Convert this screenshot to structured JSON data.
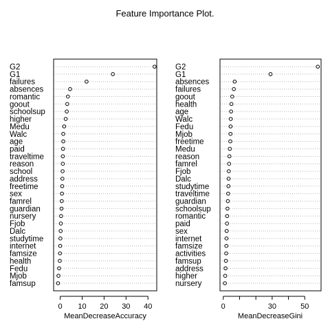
{
  "title": "Feature Importance Plot.",
  "chart_data": [
    {
      "type": "scatter",
      "xlabel": "MeanDecreaseAccuracy",
      "xlim": [
        -3,
        44
      ],
      "xticks": [
        0,
        10,
        20,
        30,
        40
      ],
      "grid": "dotted horizontal",
      "labels": [
        "G2",
        "G1",
        "failures",
        "absences",
        "romantic",
        "goout",
        "schoolsup",
        "higher",
        "Medu",
        "Walc",
        "age",
        "paid",
        "traveltime",
        "reason",
        "school",
        "address",
        "freetime",
        "sex",
        "famrel",
        "guardian",
        "nursery",
        "Fjob",
        "Dalc",
        "studytime",
        "internet",
        "famsize",
        "health",
        "Fedu",
        "Mjob",
        "famsup"
      ],
      "values": [
        43.0,
        24.0,
        12.0,
        4.5,
        3.5,
        3.2,
        3.0,
        2.5,
        1.8,
        1.4,
        1.4,
        1.3,
        1.2,
        1.2,
        1.1,
        1.0,
        0.9,
        0.8,
        0.7,
        0.6,
        0.4,
        0.3,
        0.2,
        0.1,
        0.0,
        -0.1,
        -0.2,
        -0.5,
        -0.8,
        -1.0
      ]
    },
    {
      "type": "scatter",
      "xlabel": "MeanDecreaseGini",
      "xlim": [
        -2,
        60
      ],
      "xticks": [
        0,
        10,
        20,
        30,
        40,
        50
      ],
      "ticklabels": [
        "0",
        "",
        "",
        "30",
        "",
        "50"
      ],
      "grid": "dotted horizontal",
      "labels": [
        "G2",
        "G1",
        "absences",
        "failures",
        "goout",
        "health",
        "age",
        "Walc",
        "Fedu",
        "Mjob",
        "freetime",
        "Medu",
        "reason",
        "famrel",
        "Fjob",
        "Dalc",
        "studytime",
        "traveltime",
        "guardian",
        "schoolsup",
        "romantic",
        "paid",
        "sex",
        "internet",
        "famsize",
        "activities",
        "famsup",
        "address",
        "higher",
        "nursery"
      ],
      "values": [
        58.0,
        29.0,
        7.0,
        6.5,
        5.5,
        5.0,
        4.8,
        4.6,
        4.5,
        4.4,
        4.3,
        4.0,
        3.8,
        3.6,
        3.4,
        3.3,
        3.2,
        3.0,
        2.8,
        2.6,
        2.4,
        2.3,
        2.1,
        2.0,
        1.9,
        1.8,
        1.6,
        1.4,
        1.2,
        1.0
      ]
    }
  ]
}
